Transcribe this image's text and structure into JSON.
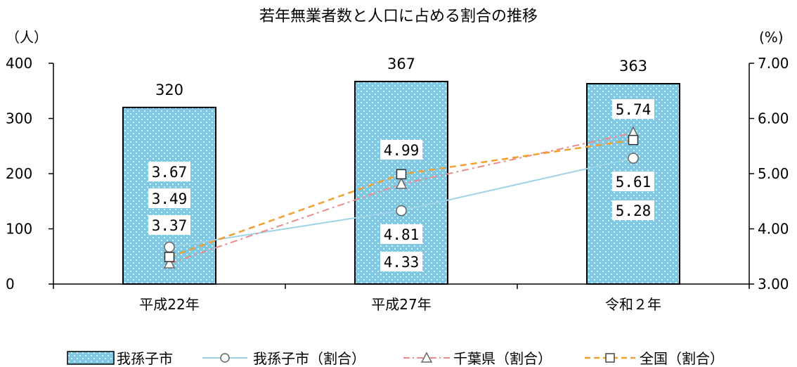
{
  "chart_data": {
    "type": "bar",
    "title": "若年無業者数と人口に占める割合の推移",
    "categories": [
      "平成22年",
      "平成27年",
      "令和２年"
    ],
    "left_axis": {
      "unit": "（人）",
      "ylim": [
        0,
        400
      ],
      "ticks": [
        "0",
        "100",
        "200",
        "300",
        "400"
      ]
    },
    "right_axis": {
      "unit": "(%)",
      "ylim": [
        3.0,
        7.0
      ],
      "ticks": [
        "3.00",
        "4.00",
        "5.00",
        "6.00",
        "7.00"
      ]
    },
    "bars": {
      "name": "我孫子市",
      "values": [
        320,
        367,
        363
      ],
      "labels": [
        "320",
        "367",
        "363"
      ],
      "color": "#7ec8e3"
    },
    "series": [
      {
        "name": "我孫子市（割合）",
        "values": [
          3.67,
          4.33,
          5.28
        ],
        "labels": [
          "3.67",
          "4.33",
          "5.28"
        ],
        "marker": "circle",
        "color": "#9ed3e6",
        "dash": "solid"
      },
      {
        "name": "千葉県（割合）",
        "values": [
          3.37,
          4.81,
          5.74
        ],
        "labels": [
          "3.37",
          "4.81",
          "5.74"
        ],
        "marker": "triangle",
        "color": "#ee8a8a",
        "dash": "dashdot"
      },
      {
        "name": "全国（割合）",
        "values": [
          3.49,
          4.99,
          5.61
        ],
        "labels": [
          "3.49",
          "4.99",
          "5.61"
        ],
        "marker": "square",
        "color": "#f0a030",
        "dash": "dash"
      }
    ],
    "data_label_slots": [
      [
        "3.67",
        "3.49",
        "3.37"
      ],
      [
        "4.99",
        "4.81",
        "4.33"
      ],
      [
        "5.74",
        "5.61",
        "5.28"
      ]
    ],
    "grid": false,
    "legend_position": "bottom"
  }
}
